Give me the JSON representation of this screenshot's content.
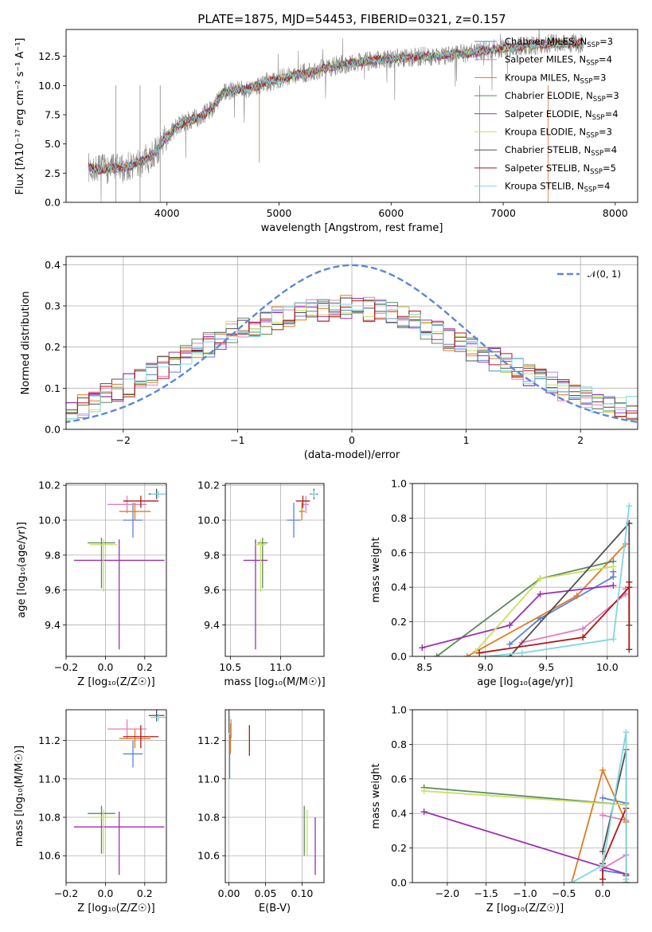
{
  "figure": {
    "title": "PLATE=1875, MJD=54453, FIBERID=0321, z=0.157"
  },
  "colors": {
    "Chabrier MILES": "#5b81d8",
    "Salpeter MILES": "#e07ec0",
    "Kroupa MILES": "#e07a1f",
    "Chabrier ELODIE": "#5a8a5a",
    "Salpeter ELODIE": "#9b30b0",
    "Kroupa ELODIE": "#c8e060",
    "Chabrier STELIB": "#505050",
    "Salpeter STELIB": "#b01818",
    "Kroupa STELIB": "#80d8e0",
    "data": "#8a8a8a",
    "normal_curve": "#5b88d8"
  },
  "chart_data": [
    {
      "id": "spectrum",
      "type": "line",
      "xlabel": "wavelength [Angstrom, rest frame]",
      "ylabel": "Flux [fλ10⁻¹⁷ erg cm⁻² s⁻¹ A⁻¹]",
      "xlim": [
        3100,
        8200
      ],
      "ylim": [
        0,
        14.8
      ],
      "xticks": [
        4000,
        5000,
        6000,
        7000,
        8000
      ],
      "yticks": [
        0.0,
        2.5,
        5.0,
        7.5,
        10.0,
        12.5
      ],
      "legend": "top-right",
      "series": [
        {
          "name": "Chabrier MILES, N_SSP=3"
        },
        {
          "name": "Salpeter MILES, N_SSP=4"
        },
        {
          "name": "Kroupa MILES, N_SSP=3"
        },
        {
          "name": "Chabrier ELODIE, N_SSP=3"
        },
        {
          "name": "Salpeter ELODIE, N_SSP=4"
        },
        {
          "name": "Kroupa ELODIE, N_SSP=3"
        },
        {
          "name": "Chabrier STELIB, N_SSP=4"
        },
        {
          "name": "Salpeter STELIB, N_SSP=5"
        },
        {
          "name": "Kroupa STELIB, N_SSP=4"
        }
      ],
      "continuum": {
        "x": [
          3300,
          3400,
          3500,
          3600,
          3700,
          3800,
          3900,
          4000,
          4100,
          4200,
          4300,
          4400,
          4500,
          4700,
          4900,
          5100,
          5300,
          5500,
          5700,
          5900,
          6100,
          6300,
          6500,
          6700,
          6900,
          7100,
          7300,
          7500
        ],
        "y": [
          3.0,
          2.8,
          2.9,
          2.9,
          3.2,
          3.6,
          4.3,
          5.6,
          6.6,
          7.0,
          7.3,
          8.0,
          9.4,
          9.7,
          10.3,
          10.8,
          11.2,
          11.7,
          12.0,
          12.2,
          12.4,
          12.5,
          12.6,
          12.8,
          13.1,
          13.3,
          13.5,
          13.6
        ]
      }
    },
    {
      "id": "residuals",
      "type": "line",
      "xlabel": "(data-model)/error",
      "ylabel": "Normed distribution",
      "xlim": [
        -2.5,
        2.5
      ],
      "ylim": [
        0,
        0.42
      ],
      "xticks": [
        -2,
        -1,
        0,
        1,
        2
      ],
      "yticks": [
        0.0,
        0.1,
        0.2,
        0.3,
        0.4
      ],
      "legend": "top-right",
      "reference": {
        "name": "𝒩(0, 1)",
        "mean": 0,
        "sigma": 1
      },
      "bin_width": 0.1,
      "envelope": {
        "x": [
          -2.5,
          -2.0,
          -1.5,
          -1.0,
          -0.5,
          0.0,
          0.5,
          1.0,
          1.5,
          2.0,
          2.5
        ],
        "y": [
          0.04,
          0.1,
          0.17,
          0.24,
          0.28,
          0.3,
          0.27,
          0.2,
          0.14,
          0.08,
          0.05
        ]
      }
    },
    {
      "id": "age-vs-Z",
      "type": "scatter",
      "xlabel": "Z [log₁₀(Z/Z☉)]",
      "ylabel": "age  [log₁₀(age/yr)]",
      "xlim": [
        -0.2,
        0.31
      ],
      "ylim": [
        9.22,
        10.21
      ],
      "xticks": [
        -0.2,
        0.0,
        0.2
      ],
      "yticks": [
        9.4,
        9.6,
        9.8,
        10.0,
        10.2
      ],
      "points": [
        {
          "series": "Chabrier MILES",
          "x": 0.14,
          "xerr": 0.05,
          "y": 10.0,
          "yerr": [
            0.1,
            0.1
          ]
        },
        {
          "series": "Salpeter MILES",
          "x": 0.11,
          "xerr": 0.1,
          "y": 10.09,
          "yerr": [
            0.05,
            0.05
          ]
        },
        {
          "series": "Kroupa MILES",
          "x": 0.15,
          "xerr": 0.08,
          "y": 10.05,
          "yerr": [
            0.05,
            0.05
          ]
        },
        {
          "series": "Chabrier ELODIE",
          "x": -0.02,
          "xerr": 0.07,
          "y": 9.87,
          "yerr": [
            0.26,
            0.03
          ]
        },
        {
          "series": "Salpeter ELODIE",
          "x": 0.07,
          "xerr": 0.23,
          "y": 9.77,
          "yerr": [
            0.51,
            0.12
          ]
        },
        {
          "series": "Kroupa ELODIE",
          "x": -0.01,
          "xerr": 0.07,
          "y": 9.86,
          "yerr": [
            0.27,
            0.03
          ]
        },
        {
          "series": "Chabrier STELIB",
          "x": 0.26,
          "xerr": 0.04,
          "y": 10.15,
          "yerr": [
            0.03,
            0.03
          ]
        },
        {
          "series": "Salpeter STELIB",
          "x": 0.18,
          "xerr": 0.09,
          "y": 10.11,
          "yerr": [
            0.04,
            0.03
          ]
        },
        {
          "series": "Kroupa STELIB",
          "x": 0.27,
          "xerr": 0.04,
          "y": 10.15,
          "yerr": [
            0.02,
            0.02
          ]
        }
      ]
    },
    {
      "id": "age-vs-mass",
      "type": "scatter",
      "xlabel": "mass [log₁₀(M/M☉)]",
      "xlim": [
        10.45,
        11.43
      ],
      "ylim": [
        9.22,
        10.21
      ],
      "xticks": [
        10.5,
        11.0
      ],
      "yticks": [
        9.4,
        9.6,
        9.8,
        10.0,
        10.2
      ],
      "points": [
        {
          "series": "Chabrier MILES",
          "x": 11.13,
          "xerr": 0.07,
          "y": 10.0,
          "yerr": [
            0.1,
            0.1
          ]
        },
        {
          "series": "Salpeter MILES",
          "x": 11.25,
          "xerr": 0.03,
          "y": 10.09,
          "yerr": [
            0.05,
            0.05
          ]
        },
        {
          "series": "Kroupa MILES",
          "x": 11.21,
          "xerr": 0.03,
          "y": 10.05,
          "yerr": [
            0.05,
            0.05
          ]
        },
        {
          "series": "Chabrier ELODIE",
          "x": 10.82,
          "xerr": 0.05,
          "y": 9.87,
          "yerr": [
            0.26,
            0.03
          ]
        },
        {
          "series": "Salpeter ELODIE",
          "x": 10.75,
          "xerr": 0.12,
          "y": 9.77,
          "yerr": [
            0.51,
            0.12
          ]
        },
        {
          "series": "Kroupa ELODIE",
          "x": 10.8,
          "xerr": 0.05,
          "y": 9.86,
          "yerr": [
            0.27,
            0.03
          ]
        },
        {
          "series": "Chabrier STELIB",
          "x": 11.33,
          "xerr": 0.04,
          "y": 10.15,
          "yerr": [
            0.03,
            0.03
          ]
        },
        {
          "series": "Salpeter STELIB",
          "x": 11.22,
          "xerr": 0.07,
          "y": 10.11,
          "yerr": [
            0.04,
            0.03
          ]
        },
        {
          "series": "Kroupa STELIB",
          "x": 11.33,
          "xerr": 0.03,
          "y": 10.15,
          "yerr": [
            0.02,
            0.02
          ]
        }
      ]
    },
    {
      "id": "weight-vs-age",
      "type": "line",
      "xlabel": "age  [log₁₀(age/yr)]",
      "ylabel": "mass weight",
      "xlim": [
        8.4,
        10.25
      ],
      "ylim": [
        0,
        1.0
      ],
      "xticks": [
        8.5,
        9.0,
        9.5,
        10.0
      ],
      "yticks": [
        0.0,
        0.2,
        0.4,
        0.6,
        0.8,
        1.0
      ],
      "series": [
        {
          "series": "Chabrier MILES",
          "x": [
            9.2,
            9.45,
            10.05,
            10.05
          ],
          "y": [
            0.07,
            0.22,
            0.46,
            0.49
          ]
        },
        {
          "series": "Salpeter MILES",
          "x": [
            9.3,
            9.8,
            10.15,
            10.15
          ],
          "y": [
            0.08,
            0.16,
            0.36,
            0.39
          ]
        },
        {
          "series": "Kroupa MILES",
          "x": [
            8.85,
            9.75,
            10.15
          ],
          "y": [
            0.0,
            0.35,
            0.65
          ]
        },
        {
          "series": "Chabrier ELODIE",
          "x": [
            8.6,
            9.45,
            10.05
          ],
          "y": [
            0.0,
            0.45,
            0.55
          ]
        },
        {
          "series": "Salpeter ELODIE",
          "x": [
            8.48,
            9.2,
            9.45,
            10.05
          ],
          "y": [
            0.05,
            0.18,
            0.36,
            0.41
          ]
        },
        {
          "series": "Kroupa ELODIE",
          "x": [
            8.92,
            9.45,
            10.05
          ],
          "y": [
            0.03,
            0.45,
            0.52
          ]
        },
        {
          "series": "Chabrier STELIB",
          "x": [
            9.2,
            10.18,
            10.18,
            10.18
          ],
          "y": [
            0.0,
            0.77,
            0.77,
            0.18
          ]
        },
        {
          "series": "Salpeter STELIB",
          "x": [
            8.95,
            9.8,
            10.18,
            10.18,
            10.18
          ],
          "y": [
            0.02,
            0.11,
            0.4,
            0.43,
            0.04
          ]
        },
        {
          "series": "Kroupa STELIB",
          "x": [
            9.0,
            9.3,
            10.05,
            10.18
          ],
          "y": [
            0.0,
            0.02,
            0.1,
            0.87
          ]
        }
      ]
    },
    {
      "id": "mass-vs-Z",
      "type": "scatter",
      "xlabel": "Z [log₁₀(Z/Z☉)]",
      "ylabel": "mass [log₁₀(M/M☉)]",
      "xlim": [
        -0.2,
        0.31
      ],
      "ylim": [
        10.46,
        11.36
      ],
      "xticks": [
        -0.2,
        0.0,
        0.2
      ],
      "yticks": [
        10.6,
        10.8,
        11.0,
        11.2
      ],
      "points": [
        {
          "series": "Chabrier MILES",
          "x": 0.14,
          "xerr": 0.05,
          "y": 11.13,
          "yerr": [
            0.07,
            0.07
          ]
        },
        {
          "series": "Salpeter MILES",
          "x": 0.11,
          "xerr": 0.1,
          "y": 11.26,
          "yerr": [
            0.05,
            0.05
          ]
        },
        {
          "series": "Kroupa MILES",
          "x": 0.15,
          "xerr": 0.08,
          "y": 11.21,
          "yerr": [
            0.05,
            0.05
          ]
        },
        {
          "series": "Chabrier ELODIE",
          "x": -0.02,
          "xerr": 0.07,
          "y": 10.82,
          "yerr": [
            0.21,
            0.04
          ]
        },
        {
          "series": "Salpeter ELODIE",
          "x": 0.07,
          "xerr": 0.23,
          "y": 10.75,
          "yerr": [
            0.25,
            0.08
          ]
        },
        {
          "series": "Kroupa ELODIE",
          "x": -0.01,
          "xerr": 0.07,
          "y": 10.8,
          "yerr": [
            0.19,
            0.04
          ]
        },
        {
          "series": "Chabrier STELIB",
          "x": 0.26,
          "xerr": 0.04,
          "y": 11.33,
          "yerr": [
            0.03,
            0.03
          ]
        },
        {
          "series": "Salpeter STELIB",
          "x": 0.18,
          "xerr": 0.09,
          "y": 11.22,
          "yerr": [
            0.06,
            0.06
          ]
        },
        {
          "series": "Kroupa STELIB",
          "x": 0.27,
          "xerr": 0.04,
          "y": 11.32,
          "yerr": [
            0.02,
            0.02
          ]
        }
      ]
    },
    {
      "id": "mass-vs-ebv",
      "type": "scatter",
      "xlabel": "E(B-V)",
      "xlim": [
        -0.005,
        0.13
      ],
      "ylim": [
        10.46,
        11.36
      ],
      "xticks": [
        0.0,
        0.05,
        0.1
      ],
      "yticks": [
        10.6,
        10.8,
        11.0,
        11.2
      ],
      "points": [
        {
          "series": "Chabrier MILES",
          "x": 0.001,
          "y": 11.13,
          "yerr": [
            0.13,
            0.13
          ]
        },
        {
          "series": "Salpeter MILES",
          "x": 0.003,
          "y": 11.26,
          "yerr": [
            0.05,
            0.05
          ]
        },
        {
          "series": "Kroupa MILES",
          "x": 0.002,
          "y": 11.21,
          "yerr": [
            0.08,
            0.08
          ]
        },
        {
          "series": "Chabrier ELODIE",
          "x": 0.103,
          "y": 10.73,
          "yerr": [
            0.13,
            0.13
          ]
        },
        {
          "series": "Salpeter ELODIE",
          "x": 0.118,
          "y": 10.65,
          "yerr": [
            0.15,
            0.15
          ]
        },
        {
          "series": "Kroupa ELODIE",
          "x": 0.107,
          "y": 10.72,
          "yerr": [
            0.12,
            0.12
          ]
        },
        {
          "series": "Chabrier STELIB",
          "x": 0.0,
          "y": 11.3,
          "yerr": [
            0.06,
            0.06
          ]
        },
        {
          "series": "Salpeter STELIB",
          "x": 0.028,
          "y": 11.2,
          "yerr": [
            0.08,
            0.08
          ]
        },
        {
          "series": "Kroupa STELIB",
          "x": 0.001,
          "y": 11.28,
          "yerr": [
            0.05,
            0.05
          ]
        }
      ]
    },
    {
      "id": "weight-vs-Z",
      "type": "line",
      "xlabel": "Z [log₁₀(Z/Z☉)]",
      "ylabel": "mass weight",
      "xlim": [
        -2.45,
        0.45
      ],
      "ylim": [
        0,
        1.0
      ],
      "xticks": [
        -2.0,
        -1.5,
        -1.0,
        -0.5,
        0.0
      ],
      "yticks": [
        0.0,
        0.2,
        0.4,
        0.6,
        0.8,
        1.0
      ],
      "series": [
        {
          "series": "Chabrier MILES",
          "x": [
            0.0,
            0.3,
            0.3,
            0.0
          ],
          "y": [
            0.49,
            0.46,
            0.05,
            0.07
          ]
        },
        {
          "series": "Salpeter MILES",
          "x": [
            0.0,
            0.3,
            0.3,
            0.0
          ],
          "y": [
            0.39,
            0.36,
            0.16,
            0.08
          ]
        },
        {
          "series": "Kroupa MILES",
          "x": [
            -0.4,
            0.0,
            0.3
          ],
          "y": [
            0.0,
            0.65,
            0.35
          ]
        },
        {
          "series": "Chabrier ELODIE",
          "x": [
            -2.3,
            0.3
          ],
          "y": [
            0.55,
            0.45
          ]
        },
        {
          "series": "Salpeter ELODIE",
          "x": [
            -2.3,
            0.3
          ],
          "y": [
            0.41,
            0.05
          ]
        },
        {
          "series": "Kroupa ELODIE",
          "x": [
            -2.3,
            0.3
          ],
          "y": [
            0.53,
            0.45
          ]
        },
        {
          "series": "Chabrier STELIB",
          "x": [
            0.0,
            0.3,
            0.3
          ],
          "y": [
            0.18,
            0.77,
            0.0
          ]
        },
        {
          "series": "Salpeter STELIB",
          "x": [
            0.0,
            0.0,
            0.3,
            0.3
          ],
          "y": [
            0.02,
            0.11,
            0.43,
            0.04
          ]
        },
        {
          "series": "Kroupa STELIB",
          "x": [
            -0.4,
            0.0,
            0.3,
            0.3
          ],
          "y": [
            0.0,
            0.1,
            0.87,
            0.02
          ]
        }
      ]
    }
  ]
}
